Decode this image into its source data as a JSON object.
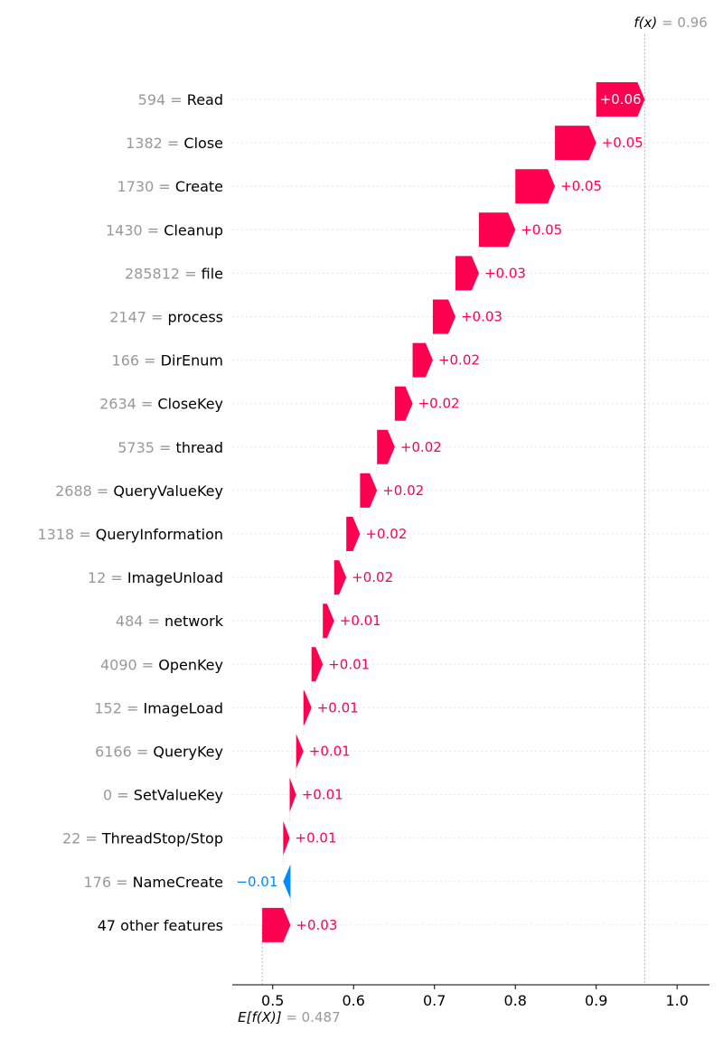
{
  "chart_data": {
    "type": "waterfall",
    "base_value": 0.487,
    "output_value": 0.96,
    "base_label": "E[f(X)]",
    "base_value_label": "= 0.487",
    "output_label": "f(x)",
    "output_value_label": "= 0.96",
    "xlim": [
      0.45,
      1.04
    ],
    "x_ticks": [
      0.5,
      0.6,
      0.7,
      0.8,
      0.9,
      1.0
    ],
    "x_tick_labels": [
      "0.5",
      "0.6",
      "0.7",
      "0.8",
      "0.9",
      "1.0"
    ],
    "colors": {
      "positive": "#ff0051",
      "negative": "#008bfb",
      "label_value": "#999999"
    },
    "features": [
      {
        "value": "594",
        "name": "Read",
        "start": 0.9,
        "end": 0.96,
        "text": "+0.06"
      },
      {
        "value": "1382",
        "name": "Close",
        "start": 0.849,
        "end": 0.9,
        "text": "+0.05"
      },
      {
        "value": "1730",
        "name": "Create",
        "start": 0.8,
        "end": 0.849,
        "text": "+0.05"
      },
      {
        "value": "1430",
        "name": "Cleanup",
        "start": 0.755,
        "end": 0.8,
        "text": "+0.05"
      },
      {
        "value": "285812",
        "name": "file",
        "start": 0.726,
        "end": 0.755,
        "text": "+0.03"
      },
      {
        "value": "2147",
        "name": "process",
        "start": 0.698,
        "end": 0.726,
        "text": "+0.03"
      },
      {
        "value": "166",
        "name": "DirEnum",
        "start": 0.673,
        "end": 0.698,
        "text": "+0.02"
      },
      {
        "value": "2634",
        "name": "CloseKey",
        "start": 0.651,
        "end": 0.673,
        "text": "+0.02"
      },
      {
        "value": "5735",
        "name": "thread",
        "start": 0.629,
        "end": 0.651,
        "text": "+0.02"
      },
      {
        "value": "2688",
        "name": "QueryValueKey",
        "start": 0.608,
        "end": 0.629,
        "text": "+0.02"
      },
      {
        "value": "1318",
        "name": "QueryInformation",
        "start": 0.591,
        "end": 0.608,
        "text": "+0.02"
      },
      {
        "value": "12",
        "name": "ImageUnload",
        "start": 0.576,
        "end": 0.591,
        "text": "+0.02"
      },
      {
        "value": "484",
        "name": "network",
        "start": 0.562,
        "end": 0.576,
        "text": "+0.01"
      },
      {
        "value": "4090",
        "name": "OpenKey",
        "start": 0.548,
        "end": 0.562,
        "text": "+0.01"
      },
      {
        "value": "152",
        "name": "ImageLoad",
        "start": 0.538,
        "end": 0.548,
        "text": "+0.01"
      },
      {
        "value": "6166",
        "name": "QueryKey",
        "start": 0.529,
        "end": 0.538,
        "text": "+0.01"
      },
      {
        "value": "0",
        "name": "SetValueKey",
        "start": 0.521,
        "end": 0.529,
        "text": "+0.01"
      },
      {
        "value": "22",
        "name": "ThreadStop/Stop",
        "start": 0.513,
        "end": 0.521,
        "text": "+0.01"
      },
      {
        "value": "176",
        "name": "NameCreate",
        "start": 0.522,
        "end": 0.513,
        "text": "−0.01"
      },
      {
        "value": "",
        "name": "47 other features",
        "start": 0.487,
        "end": 0.522,
        "text": "+0.03"
      }
    ]
  }
}
